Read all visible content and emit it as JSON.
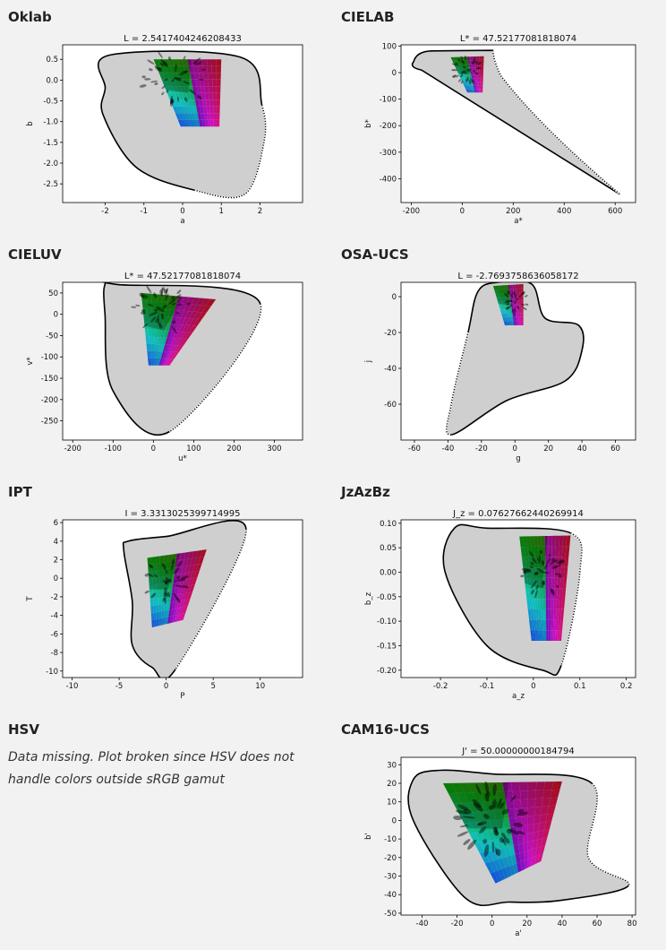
{
  "panels": [
    {
      "heading": "Oklab"
    },
    {
      "heading": "CIELAB"
    },
    {
      "heading": "CIELUV"
    },
    {
      "heading": "OSA-UCS"
    },
    {
      "heading": "IPT"
    },
    {
      "heading": "JzAzBz"
    },
    {
      "heading": "HSV",
      "note": "Data missing. Plot broken since HSV does not handle colors outside sRGB gamut"
    },
    {
      "heading": "CAM16-UCS"
    }
  ],
  "chart_data": [
    {
      "type": "area",
      "title": "L = 2.5417404246208433",
      "xlabel": "a",
      "ylabel": "b",
      "xticks": [
        -2,
        -1,
        0,
        1,
        2
      ],
      "yticks": [
        0.5,
        0.0,
        -0.5,
        -1.0,
        -1.5,
        -2.0,
        -2.5
      ],
      "xlim": [
        -3.1,
        3.1
      ],
      "ylim": [
        -2.95,
        0.85
      ],
      "outline": [
        [
          -1.9,
          0.6
        ],
        [
          1.5,
          0.55
        ],
        [
          2.05,
          -0.6
        ],
        [
          2.1,
          -1.5
        ],
        [
          1.6,
          -2.75
        ],
        [
          0.3,
          -2.65
        ],
        [
          -1.2,
          -2.1
        ],
        [
          -2.05,
          -0.85
        ],
        [
          -2.0,
          -0.2
        ]
      ],
      "dotted_edge": [
        2,
        5
      ],
      "srgb": {
        "tl": [
          -0.75,
          0.5
        ],
        "tr": [
          1.0,
          0.5
        ],
        "br": [
          0.95,
          -1.12
        ],
        "bl": [
          -0.05,
          -1.12
        ]
      },
      "ellipses": {
        "cx": -0.2,
        "cy": 0.05,
        "spread": [
          0.9,
          0.7
        ],
        "rx": 0.08,
        "ry": 0.03,
        "count": 40
      }
    },
    {
      "type": "area",
      "title": "L* = 47.52177081818074",
      "xlabel": "a*",
      "ylabel": "b*",
      "xticks": [
        -200,
        0,
        200,
        400,
        600
      ],
      "yticks": [
        100,
        0,
        -100,
        -200,
        -300,
        -400
      ],
      "xlim": [
        -240,
        680
      ],
      "ylim": [
        -490,
        105
      ],
      "outline": [
        [
          -180,
          42
        ],
        [
          -140,
          82
        ],
        [
          -80,
          82
        ],
        [
          0,
          82
        ],
        [
          100,
          82
        ],
        [
          130,
          80
        ],
        [
          120,
          30
        ],
        [
          200,
          -80
        ],
        [
          400,
          -290
        ],
        [
          620,
          -460
        ],
        [
          -210,
          30
        ],
        [
          -200,
          10
        ],
        [
          -170,
          -30
        ],
        [
          -100,
          -80
        ],
        [
          300,
          -300
        ]
      ],
      "custom": "cielab",
      "srgb": {
        "tl": [
          -45,
          58
        ],
        "tr": [
          85,
          62
        ],
        "br": [
          80,
          -75
        ],
        "bl": [
          20,
          -75
        ]
      },
      "ellipses": {
        "cx": 20,
        "cy": 10,
        "spread": [
          60,
          50
        ],
        "rx": 8,
        "ry": 3,
        "count": 35
      }
    },
    {
      "type": "area",
      "title": "L* = 47.52177081818074",
      "xlabel": "u*",
      "ylabel": "v*",
      "xticks": [
        -200,
        -100,
        0,
        100,
        200,
        300
      ],
      "yticks": [
        50,
        0,
        -50,
        -100,
        -150,
        -200,
        -250
      ],
      "xlim": [
        -225,
        370
      ],
      "ylim": [
        -295,
        75
      ],
      "outline": [
        [
          -120,
          70
        ],
        [
          -90,
          70
        ],
        [
          265,
          25
        ],
        [
          40,
          -275
        ],
        [
          -100,
          -180
        ],
        [
          -120,
          0
        ]
      ],
      "dotted_edge": [
        2,
        3
      ],
      "srgb": {
        "tl": [
          -30,
          50
        ],
        "tr": [
          155,
          35
        ],
        "br": [
          40,
          -120
        ],
        "bl": [
          -12,
          -120
        ]
      },
      "ellipses": {
        "cx": 20,
        "cy": 10,
        "spread": [
          70,
          55
        ],
        "rx": 8,
        "ry": 3,
        "count": 38
      }
    },
    {
      "type": "area",
      "title": "L = -2.7693758636058172",
      "xlabel": "g",
      "ylabel": "j",
      "xticks": [
        -60,
        -40,
        -20,
        0,
        20,
        40,
        60
      ],
      "yticks": [
        0,
        -20,
        -40,
        -60
      ],
      "xlim": [
        -68,
        72
      ],
      "ylim": [
        -80,
        8
      ],
      "outline": [
        [
          -22,
          3
        ],
        [
          -10,
          8
        ],
        [
          10,
          7
        ],
        [
          18,
          -12
        ],
        [
          38,
          -16
        ],
        [
          40,
          -30
        ],
        [
          30,
          -47
        ],
        [
          -5,
          -58
        ],
        [
          -38,
          -77
        ],
        [
          -38,
          -60
        ],
        [
          -28,
          -20
        ]
      ],
      "dotted_edge": [
        8,
        10
      ],
      "srgb": {
        "tl": [
          -13,
          6
        ],
        "tr": [
          5,
          7
        ],
        "br": [
          5,
          -16
        ],
        "bl": [
          -6,
          -16
        ]
      },
      "ellipses": {
        "cx": 0,
        "cy": -3,
        "spread": [
          8,
          7
        ],
        "rx": 1,
        "ry": 0.4,
        "count": 30
      }
    },
    {
      "type": "area",
      "title": "I = 3.3313025399714995",
      "xlabel": "P",
      "ylabel": "T",
      "xticks": [
        -10,
        -5,
        0,
        5,
        10
      ],
      "yticks": [
        6,
        4,
        2,
        0,
        -2,
        -4,
        -6,
        -8,
        -10
      ],
      "xlim": [
        -11,
        14.5
      ],
      "ylim": [
        -10.7,
        6.3
      ],
      "outline": [
        [
          -4,
          4
        ],
        [
          0,
          4.5
        ],
        [
          8.5,
          5.3
        ],
        [
          1,
          -9.8
        ],
        [
          -1.5,
          -9.6
        ],
        [
          -3.6,
          -7.2
        ],
        [
          -3.6,
          -2.5
        ],
        [
          -4.5,
          3
        ]
      ],
      "dotted_edge": [
        2,
        3
      ],
      "srgb": {
        "tl": [
          -2,
          2.2
        ],
        "tr": [
          4.3,
          3.1
        ],
        "br": [
          1.8,
          -4.5
        ],
        "bl": [
          -1.5,
          -5.3
        ]
      },
      "ellipses": {
        "cx": 0,
        "cy": -0.5,
        "spread": [
          2.5,
          2.5
        ],
        "rx": 0.3,
        "ry": 0.12,
        "count": 35
      }
    },
    {
      "type": "area",
      "title": "J_z = 0.07627662440269914",
      "xlabel": "a_z",
      "ylabel": "b_z",
      "xticks": [
        -0.2,
        -0.1,
        0.0,
        0.1,
        0.2
      ],
      "yticks": [
        0.1,
        0.05,
        0.0,
        -0.05,
        -0.1,
        -0.15,
        -0.2
      ],
      "xlim": [
        -0.285,
        0.22
      ],
      "ylim": [
        -0.215,
        0.107
      ],
      "outline": [
        [
          -0.17,
          0.09
        ],
        [
          -0.1,
          0.09
        ],
        [
          0.08,
          0.08
        ],
        [
          0.1,
          0.0
        ],
        [
          0.06,
          -0.19
        ],
        [
          0.02,
          -0.2
        ],
        [
          -0.1,
          -0.15
        ],
        [
          -0.19,
          0.0
        ]
      ],
      "dotted_edge": [
        2,
        4
      ],
      "srgb": {
        "tl": [
          -0.03,
          0.073
        ],
        "tr": [
          0.08,
          0.075
        ],
        "br": [
          0.06,
          -0.14
        ],
        "bl": [
          -0.004,
          -0.14
        ]
      },
      "ellipses": {
        "cx": 0.02,
        "cy": 0.0,
        "spread": [
          0.045,
          0.05
        ],
        "rx": 0.006,
        "ry": 0.0025,
        "count": 40
      }
    },
    {
      "type": "empty",
      "title": "",
      "note": "Data missing"
    },
    {
      "type": "area",
      "title": "J' = 50.00000000184794",
      "xlabel": "a'",
      "ylabel": "b'",
      "xticks": [
        -40,
        -20,
        0,
        20,
        40,
        60,
        80
      ],
      "yticks": [
        30,
        20,
        10,
        0,
        -10,
        -20,
        -30,
        -40,
        -50
      ],
      "xlim": [
        -52,
        82
      ],
      "ylim": [
        -51,
        34
      ],
      "outline": [
        [
          -45,
          22
        ],
        [
          -30,
          27
        ],
        [
          0,
          25
        ],
        [
          57,
          20
        ],
        [
          55,
          -20
        ],
        [
          78,
          -35
        ],
        [
          40,
          -43
        ],
        [
          10,
          -44
        ],
        [
          -15,
          -42
        ],
        [
          -45,
          0
        ]
      ],
      "dotted_edge": [
        3,
        5
      ],
      "srgb": {
        "tl": [
          -28,
          20
        ],
        "tr": [
          40,
          21
        ],
        "br": [
          28,
          -22
        ],
        "bl": [
          2,
          -34
        ]
      },
      "ellipses": {
        "cx": 0,
        "cy": 0,
        "spread": [
          22,
          18
        ],
        "rx": 2.6,
        "ry": 1,
        "count": 45
      }
    }
  ]
}
